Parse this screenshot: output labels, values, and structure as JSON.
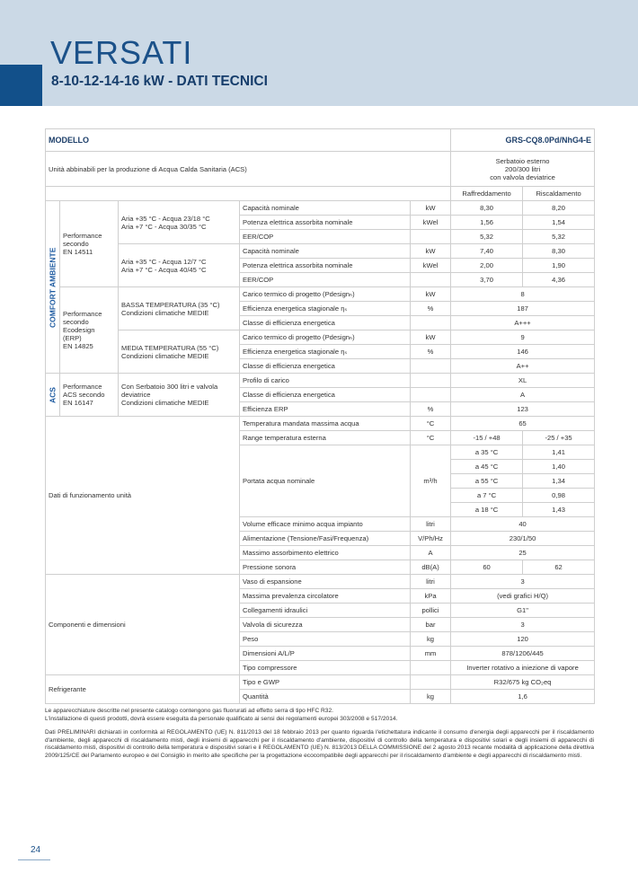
{
  "header": {
    "title": "VERSATI",
    "subtitle": "8-10-12-14-16 kW - DATI TECNICI"
  },
  "table": {
    "head": {
      "model_label": "MODELLO",
      "model": "GRS-CQ8.0Pd/NhG4-E",
      "pairing_label": "Unità abbinabili per la produzione di Acqua Calda Sanitaria (ACS)",
      "pairing_value": "Serbatoio esterno\n200/300 litri\ncon valvola deviatrice",
      "columns": [
        "Raffreddamento",
        "Riscaldamento"
      ]
    },
    "rows": [
      [
        "COMFORT AMBIENTE",
        "Performance\nsecondo\nEN 14511",
        "Aria +35 °C - Acqua 23/18 °C\nAria +7 °C - Acqua 30/35 °C",
        "Capacità nominale",
        "kW",
        "8,30",
        "8,20"
      ],
      [
        "Potenza elettrica assorbita nominale",
        "kWel",
        "1,56",
        "1,54"
      ],
      [
        "EER/COP",
        "5,32",
        "5,32"
      ],
      [
        "Aria +35 °C - Acqua 12/7 °C\nAria +7 °C - Acqua 40/45 °C",
        "Capacità nominale",
        "kW",
        "7,40",
        "8,30"
      ],
      [
        "Potenza elettrica assorbita nominale",
        "kWel",
        "2,00",
        "1,90"
      ],
      [
        "EER/COP",
        "3,70",
        "4,36"
      ],
      [
        "Performance\nsecondo\nEcodesign\n(ERP)\nEN 14825",
        "BASSA TEMPERATURA (35 °C)\nCondizioni climatiche MEDIE",
        "Carico termico di progetto (Pdesignₕ)",
        "kW",
        "8"
      ],
      [
        "Efficienza energetica stagionale ηₛ",
        "%",
        "187"
      ],
      [
        "Classe di efficienza energetica",
        "A+++"
      ],
      [
        "MEDIA TEMPERATURA (55 °C)\nCondizioni climatiche MEDIE",
        "Carico termico di progetto (Pdesignₕ)",
        "kW",
        "9"
      ],
      [
        "Efficienza energetica stagionale ηₛ",
        "%",
        "146"
      ],
      [
        "Classe di efficienza energetica",
        "A++"
      ],
      [
        "ACS",
        "Performance\nACS secondo\nEN 16147",
        "Con Serbatoio 300 litri e valvola deviatrice\nCondizioni climatiche MEDIE",
        "Profilo di carico",
        "XL"
      ],
      [
        "Classe di efficienza energetica",
        "A"
      ],
      [
        "Efficienza ERP",
        "%",
        "123"
      ],
      [
        "Dati di funzionamento unità",
        "Temperatura mandata massima acqua",
        "°C",
        "65"
      ],
      [
        "Range temperatura esterna",
        "°C",
        "-15 / +48",
        "-25 / +35"
      ],
      [
        "Portata acqua nominale",
        "m³/h",
        "a 35 °C",
        "1,41"
      ],
      [
        "a 45 °C",
        "1,40"
      ],
      [
        "a 55 °C",
        "1,34"
      ],
      [
        "a 7 °C",
        "0,98"
      ],
      [
        "a 18 °C",
        "1,43"
      ],
      [
        "Volume efficace minimo acqua impianto",
        "litri",
        "40"
      ],
      [
        "Alimentazione (Tensione/Fasi/Frequenza)",
        "V/Ph/Hz",
        "230/1/50"
      ],
      [
        "Massimo assorbimento elettrico",
        "A",
        "25"
      ],
      [
        "Pressione sonora",
        "dB(A)",
        "60",
        "62"
      ],
      [
        "Componenti e dimensioni",
        "Vaso di espansione",
        "litri",
        "3"
      ],
      [
        "Massima prevalenza circolatore",
        "kPa",
        "(vedi grafici H/Q)"
      ],
      [
        "Collegamenti idraulici",
        "pollici",
        "G1\""
      ],
      [
        "Valvola di sicurezza",
        "bar",
        "3"
      ],
      [
        "Peso",
        "kg",
        "120"
      ],
      [
        "Dimensioni A/L/P",
        "mm",
        "878/1206/445"
      ],
      [
        "Tipo compressore",
        "Inverter rotativo a iniezione di vapore"
      ],
      [
        "Refrigerante",
        "Tipo e GWP",
        "R32/675 kg CO₂eq"
      ],
      [
        "Quantità",
        "kg",
        "1,6"
      ]
    ]
  },
  "notes": [
    "Le apparecchiature descritte nel presente catalogo contengono gas fluorurati ad effetto serra di tipo HFC R32.",
    "L'installazione di questi prodotti, dovrà essere eseguita da personale qualificato ai sensi dei regolamenti europei 303/2008 e 517/2014.",
    "Dati PRELIMINARI  dichiarati in conformità al REGOLAMENTO (UE) N. 811/2013  del 18 febbraio 2013 per quanto riguarda l'etichettatura indicante il consumo d'energia degli apparecchi per il riscaldamento d'ambiente, degli apparecchi di riscaldamento misti, degli insiemi di apparecchi per il riscaldamento d'ambiente, dispositivi di controllo della temperatura e dispositivi solari e degli insiemi di apparecchi di riscaldamento misti, dispositivi di controllo della temperatura e dispositivi solari e il  REGOLAMENTO (UE) N. 813/2013 DELLA COMMISSIONE del 2 agosto 2013 recante modalità di applicazione della direttiva 2009/125/CE del Parlamento europeo e del Consiglio in merito alle specifiche per la progettazione ecocompatibile degli apparecchi per il riscaldamento d'ambiente e degli apparecchi di riscaldamento misti."
  ],
  "page_number": "24"
}
